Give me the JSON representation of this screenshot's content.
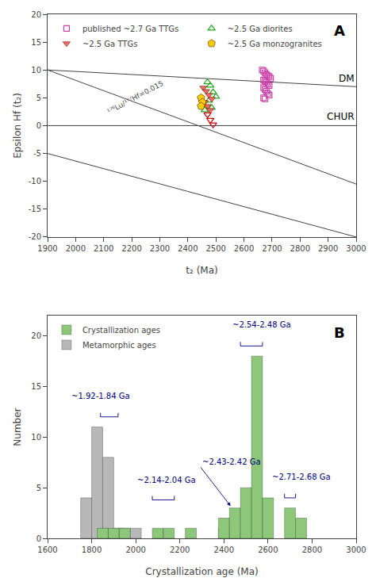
{
  "chart_data": [
    {
      "type": "scatter",
      "xlabel": "t₂ (Ma)",
      "ylabel": "Epsilon Hf (t₂)",
      "xlim": [
        1900,
        3000
      ],
      "ylim": [
        -20,
        20
      ],
      "xticks": [
        1900,
        2000,
        2100,
        2200,
        2300,
        2400,
        2500,
        2600,
        2700,
        2800,
        2900,
        3000
      ],
      "yticks": [
        -20,
        -15,
        -10,
        -5,
        0,
        5,
        10,
        15,
        20
      ],
      "grid": false,
      "legend": "upper left",
      "series": [
        {
          "type": "line",
          "color": "#444444",
          "x": [
            1900,
            3000
          ],
          "values": [
            10.0,
            7.0
          ]
        },
        {
          "type": "line",
          "color": "#444444",
          "x": [
            1900,
            3000
          ],
          "values": [
            0.0,
            0.0
          ]
        },
        {
          "type": "line",
          "color": "#444444",
          "x": [
            1900,
            3000
          ],
          "values": [
            10.0,
            -10.5
          ]
        },
        {
          "type": "line",
          "color": "#444444",
          "x": [
            1900,
            3000
          ],
          "values": [
            -5.0,
            -20.0
          ]
        },
        {
          "name": "published ~2.7 Ga TTGs",
          "type": "scatter",
          "marker": "square-open",
          "color": "#cc44aa",
          "x": [
            2665,
            2670,
            2675,
            2680,
            2685,
            2690,
            2695,
            2670,
            2675,
            2680,
            2685,
            2690,
            2670,
            2675,
            2680,
            2685,
            2690,
            2670,
            2675
          ],
          "values": [
            10.0,
            9.8,
            9.5,
            9.2,
            9.0,
            8.8,
            8.5,
            8.2,
            8.0,
            7.8,
            7.5,
            7.2,
            6.8,
            6.5,
            6.2,
            5.8,
            5.5,
            5.0,
            4.8
          ]
        },
        {
          "name": "~2.5 Ga diorites",
          "type": "scatter",
          "marker": "triangle-up-open",
          "color": "#22aa22",
          "x": [
            2470,
            2480,
            2490,
            2500,
            2475,
            2485,
            2460
          ],
          "values": [
            7.8,
            7.2,
            6.0,
            5.2,
            4.5,
            3.2,
            2.8
          ]
        },
        {
          "name": "~2.5 Ga TTGs",
          "type": "scatter",
          "marker": "triangle-down",
          "color": "#ff6666",
          "x": [
            2455,
            2465,
            2475,
            2485,
            2460,
            2470,
            2480
          ],
          "values": [
            6.8,
            6.2,
            5.5,
            4.8,
            4.2,
            3.5,
            2.8
          ]
        },
        {
          "type": "scatter",
          "marker": "triangle-down-open",
          "color": "#cc0000",
          "x": [
            2470,
            2480,
            2490
          ],
          "values": [
            2.0,
            1.0,
            0.2
          ]
        },
        {
          "name": "~2.5 Ga monzogranites",
          "type": "scatter",
          "marker": "pentagon",
          "color": "#ffcc00",
          "x": [
            2447,
            2452,
            2447
          ],
          "values": [
            5.0,
            4.2,
            3.5
          ]
        }
      ],
      "annotations": [
        {
          "text": "DM",
          "x": 3000,
          "y": 7.2
        },
        {
          "text": "CHUR",
          "x": 3000,
          "y": 0.3
        },
        {
          "text": "¹⁷⁶Lu/¹⁷⁷Hf=0.015",
          "x": 2100,
          "y": 1.5,
          "color": "#444444"
        },
        {
          "text": "A"
        }
      ]
    },
    {
      "type": "bar",
      "xlabel": "Crystallization age (Ma)",
      "ylabel": "Number",
      "xlim": [
        1600,
        3000
      ],
      "ylim": [
        0,
        22
      ],
      "xticks": [
        1600,
        1800,
        2000,
        2200,
        2400,
        2600,
        2800,
        3000
      ],
      "yticks": [
        0,
        5,
        10,
        15,
        20
      ],
      "grid": false,
      "legend": "upper left",
      "bar_width": 50,
      "series": [
        {
          "name": "Crystallization ages",
          "color": "#8dc87a",
          "x": [
            1825,
            1875,
            1925,
            2075,
            2125,
            2225,
            2375,
            2425,
            2475,
            2525,
            2575,
            2675,
            2725
          ],
          "values": [
            1,
            1,
            1,
            1,
            1,
            1,
            2,
            3,
            5,
            18,
            4,
            3,
            2
          ]
        },
        {
          "name": "Metamorphic ages",
          "color": "#b8b8b8",
          "x": [
            1750,
            1800,
            1850,
            1900,
            1925,
            1975,
            2375
          ],
          "values": [
            4,
            11,
            8,
            1,
            1,
            1,
            1
          ]
        }
      ],
      "annotations": [
        {
          "text": "~1.92-1.84 Ga",
          "x": 1700,
          "y": 13.5,
          "color": "#000080",
          "bracket": [
            1840,
            1920,
            12.0
          ]
        },
        {
          "text": "~2.14-2.04 Ga",
          "x": 2000,
          "y": 5.2,
          "color": "#000080",
          "bracket": [
            2075,
            2175,
            3.8
          ]
        },
        {
          "text": "~2.43-2.42 Ga",
          "x": 2295,
          "y": 7.0,
          "color": "#000080",
          "arrow_to": [
            2430,
            3.2
          ]
        },
        {
          "text": "~2.54-2.48 Ga",
          "x": 2430,
          "y": 20.5,
          "color": "#000080",
          "bracket": [
            2475,
            2575,
            19.0
          ]
        },
        {
          "text": "~2.71-2.68 Ga",
          "x": 2610,
          "y": 5.5,
          "color": "#000080",
          "bracket": [
            2675,
            2725,
            4.0
          ]
        },
        {
          "text": "B"
        }
      ]
    }
  ]
}
